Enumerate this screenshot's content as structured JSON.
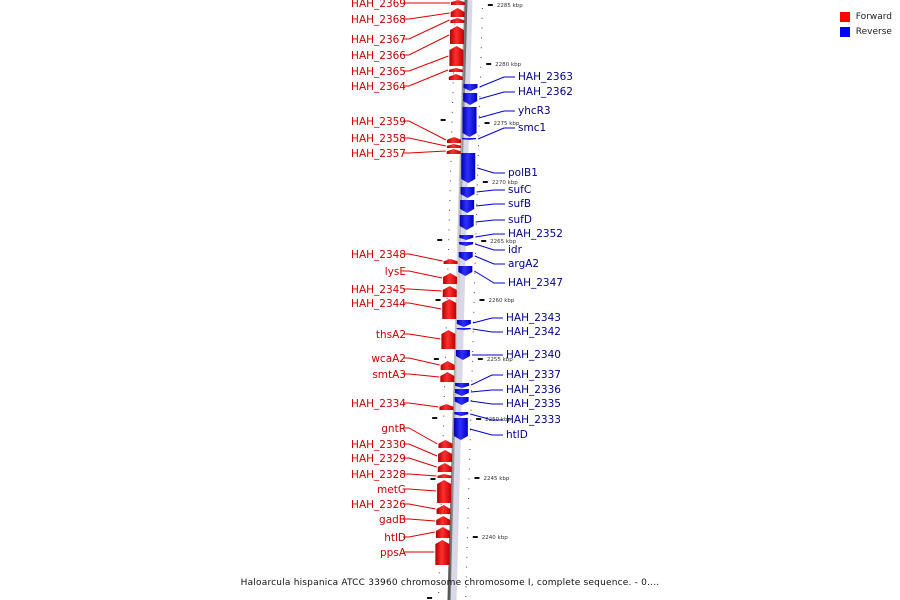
{
  "legend": [
    {
      "label": "Forward",
      "color": "#ff0000"
    },
    {
      "label": "Reverse",
      "color": "#0000ff"
    }
  ],
  "caption": "Haloarcula hispanica ATCC 33960 chromosome chromosome I, complete sequence. - 0....",
  "colors": {
    "forward": "#ff0000",
    "reverse": "#0000ff",
    "forward_text": "#cc0000",
    "reverse_text": "#00008b"
  },
  "ticks": [
    "2285 kbp",
    "2280 kbp",
    "2275 kbp",
    "2270 kbp",
    "2265 kbp",
    "2260 kbp",
    "2255 kbp",
    "2250 kbp",
    "2245 kbp",
    "2240 kbp"
  ],
  "forward_genes": [
    "HAH_2369",
    "HAH_2368",
    "HAH_2367",
    "HAH_2366",
    "HAH_2365",
    "HAH_2364",
    "HAH_2359",
    "HAH_2358",
    "HAH_2357",
    "HAH_2348",
    "lysE",
    "HAH_2345",
    "HAH_2344",
    "thsA2",
    "wcaA2",
    "smtA3",
    "HAH_2334",
    "gntR",
    "HAH_2330",
    "HAH_2329",
    "HAH_2328",
    "metG",
    "HAH_2326",
    "gadB",
    "htlD",
    "ppsA"
  ],
  "reverse_genes": [
    "HAH_2363",
    "HAH_2362",
    "yhcR3",
    "smc1",
    "polB1",
    "sufC",
    "sufB",
    "sufD",
    "HAH_2352",
    "idr",
    "argA2",
    "HAH_2347",
    "HAH_2343",
    "HAH_2342",
    "HAH_2340",
    "HAH_2337",
    "HAH_2336",
    "HAH_2335",
    "HAH_2333",
    "htlD"
  ]
}
